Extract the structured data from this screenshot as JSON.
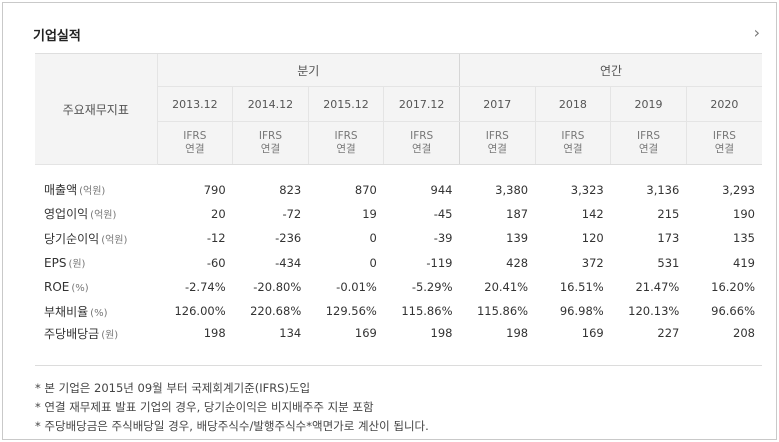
{
  "title": "기업실적",
  "more_icon": "chevron-right-icon",
  "header": {
    "label": "주요재무지표",
    "group_quarter": "분기",
    "group_annual": "연간",
    "periods": [
      "2013.12",
      "2014.12",
      "2015.12",
      "2017.12",
      "2017",
      "2018",
      "2019",
      "2020"
    ],
    "standard_line1": "IFRS",
    "standard_line2": "연결"
  },
  "rows": [
    {
      "name": "매출액",
      "unit": "(억원)",
      "values": [
        "790",
        "823",
        "870",
        "944",
        "3,380",
        "3,323",
        "3,136",
        "3,293"
      ]
    },
    {
      "name": "영업이익",
      "unit": "(억원)",
      "values": [
        "20",
        "-72",
        "19",
        "-45",
        "187",
        "142",
        "215",
        "190"
      ]
    },
    {
      "name": "당기순이익",
      "unit": "(억원)",
      "values": [
        "-12",
        "-236",
        "0",
        "-39",
        "139",
        "120",
        "173",
        "135"
      ]
    },
    {
      "name": "EPS",
      "unit": "(원)",
      "values": [
        "-60",
        "-434",
        "0",
        "-119",
        "428",
        "372",
        "531",
        "419"
      ]
    },
    {
      "name": "ROE",
      "unit": "(%)",
      "values": [
        "-2.74%",
        "-20.80%",
        "-0.01%",
        "-5.29%",
        "20.41%",
        "16.51%",
        "21.47%",
        "16.20%"
      ]
    },
    {
      "name": "부채비율",
      "unit": "(%)",
      "values": [
        "126.00%",
        "220.68%",
        "129.56%",
        "115.86%",
        "115.86%",
        "96.98%",
        "120.13%",
        "96.66%"
      ]
    },
    {
      "name": "주당배당금",
      "unit": "(원)",
      "values": [
        "198",
        "134",
        "169",
        "198",
        "198",
        "169",
        "227",
        "208"
      ]
    }
  ],
  "notes": [
    "* 본 기업은 2015년 09월 부터 국제회계기준(IFRS)도입",
    "* 연결 재무제표 발표 기업의 경우, 당기순이익은 비지배주주 지분 포함",
    "* 주당배당금은 주식배당일 경우, 배당주식수/발행주식수*액면가로 계산이 됩니다."
  ]
}
